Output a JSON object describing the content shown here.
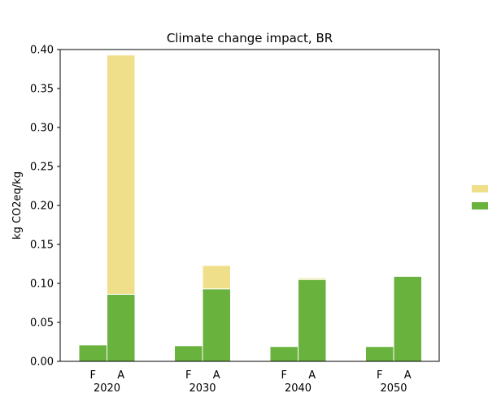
{
  "chart_data": {
    "type": "bar",
    "stacked": true,
    "title": "Climate change impact, BR",
    "xlabel": "",
    "ylabel": "kg CO2eq/kg",
    "ylim": [
      0,
      0.4
    ],
    "yticks": [
      "0.00",
      "0.05",
      "0.10",
      "0.15",
      "0.20",
      "0.25",
      "0.30",
      "0.35",
      "0.40"
    ],
    "grid": false,
    "legend_position": "right",
    "groups": [
      "2020",
      "2030",
      "2040",
      "2050"
    ],
    "subcategories": [
      "F",
      "A"
    ],
    "series": [
      {
        "color": "#6ab23e",
        "values": [
          [
            0.021,
            0.086
          ],
          [
            0.02,
            0.093
          ],
          [
            0.019,
            0.105
          ],
          [
            0.019,
            0.109
          ]
        ]
      },
      {
        "color": "#f0df8a",
        "values": [
          [
            0.0,
            0.307
          ],
          [
            0.0,
            0.03
          ],
          [
            0.0,
            0.002
          ],
          [
            0.0,
            0.0
          ]
        ]
      }
    ]
  }
}
